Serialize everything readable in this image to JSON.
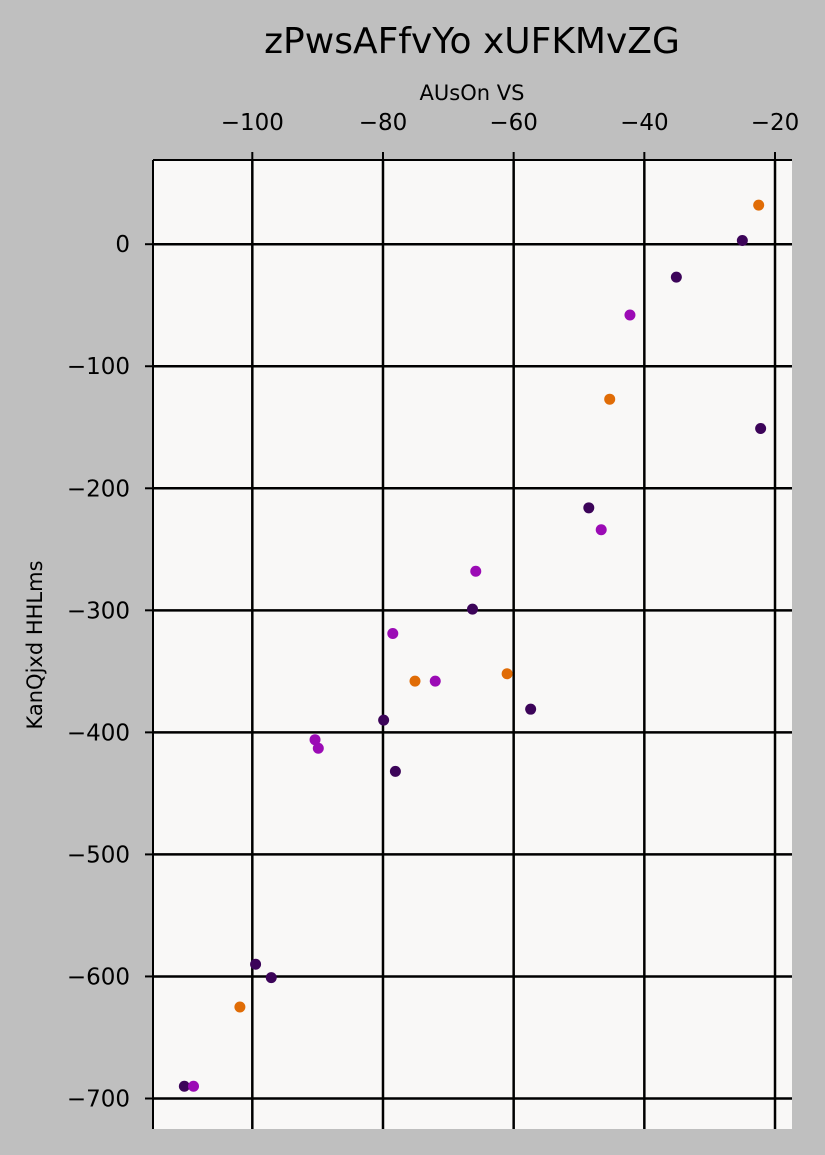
{
  "chart_data": {
    "type": "scatter",
    "title": "zPwsAFfvYo xUFKMvZG",
    "xlabel": "AUsOn VS",
    "ylabel": "KanQjxd HHLms",
    "x_axis_position": "top",
    "xlim": [
      -115.2,
      -17.4
    ],
    "ylim": [
      -725,
      69
    ],
    "xticks": [
      -100,
      -80,
      -60,
      -40,
      -20
    ],
    "xtick_labels": [
      "−100",
      "−80",
      "−60",
      "−40",
      "−20"
    ],
    "yticks": [
      0,
      -100,
      -200,
      -300,
      -400,
      -500,
      -600,
      -700
    ],
    "ytick_labels": [
      "0",
      "−100",
      "−200",
      "−300",
      "−400",
      "−500",
      "−600",
      "−700"
    ],
    "grid": true,
    "background_color": "#bfbfbf",
    "plot_background_color": "#f9f8f7",
    "series": [
      {
        "color": "#3c0459",
        "points": [
          {
            "x": -25,
            "y": 3
          },
          {
            "x": -35.1,
            "y": -27
          },
          {
            "x": -22.2,
            "y": -151
          },
          {
            "x": -48.5,
            "y": -216
          },
          {
            "x": -66.3,
            "y": -299
          },
          {
            "x": -57.4,
            "y": -381
          },
          {
            "x": -79.9,
            "y": -390
          },
          {
            "x": -78.1,
            "y": -432
          },
          {
            "x": -99.5,
            "y": -590
          },
          {
            "x": -97.1,
            "y": -601
          },
          {
            "x": -110.4,
            "y": -690
          }
        ]
      },
      {
        "color": "#9b0bb5",
        "points": [
          {
            "x": -42.2,
            "y": -58
          },
          {
            "x": -46.6,
            "y": -234
          },
          {
            "x": -65.8,
            "y": -268
          },
          {
            "x": -78.5,
            "y": -319
          },
          {
            "x": -72,
            "y": -358
          },
          {
            "x": -90.4,
            "y": -406
          },
          {
            "x": -89.9,
            "y": -413
          },
          {
            "x": -109,
            "y": -690
          }
        ]
      },
      {
        "color": "#e06c06",
        "points": [
          {
            "x": -22.5,
            "y": 32
          },
          {
            "x": -45.3,
            "y": -127
          },
          {
            "x": -75.1,
            "y": -358
          },
          {
            "x": -61,
            "y": -352
          },
          {
            "x": -101.9,
            "y": -625
          }
        ]
      }
    ]
  }
}
